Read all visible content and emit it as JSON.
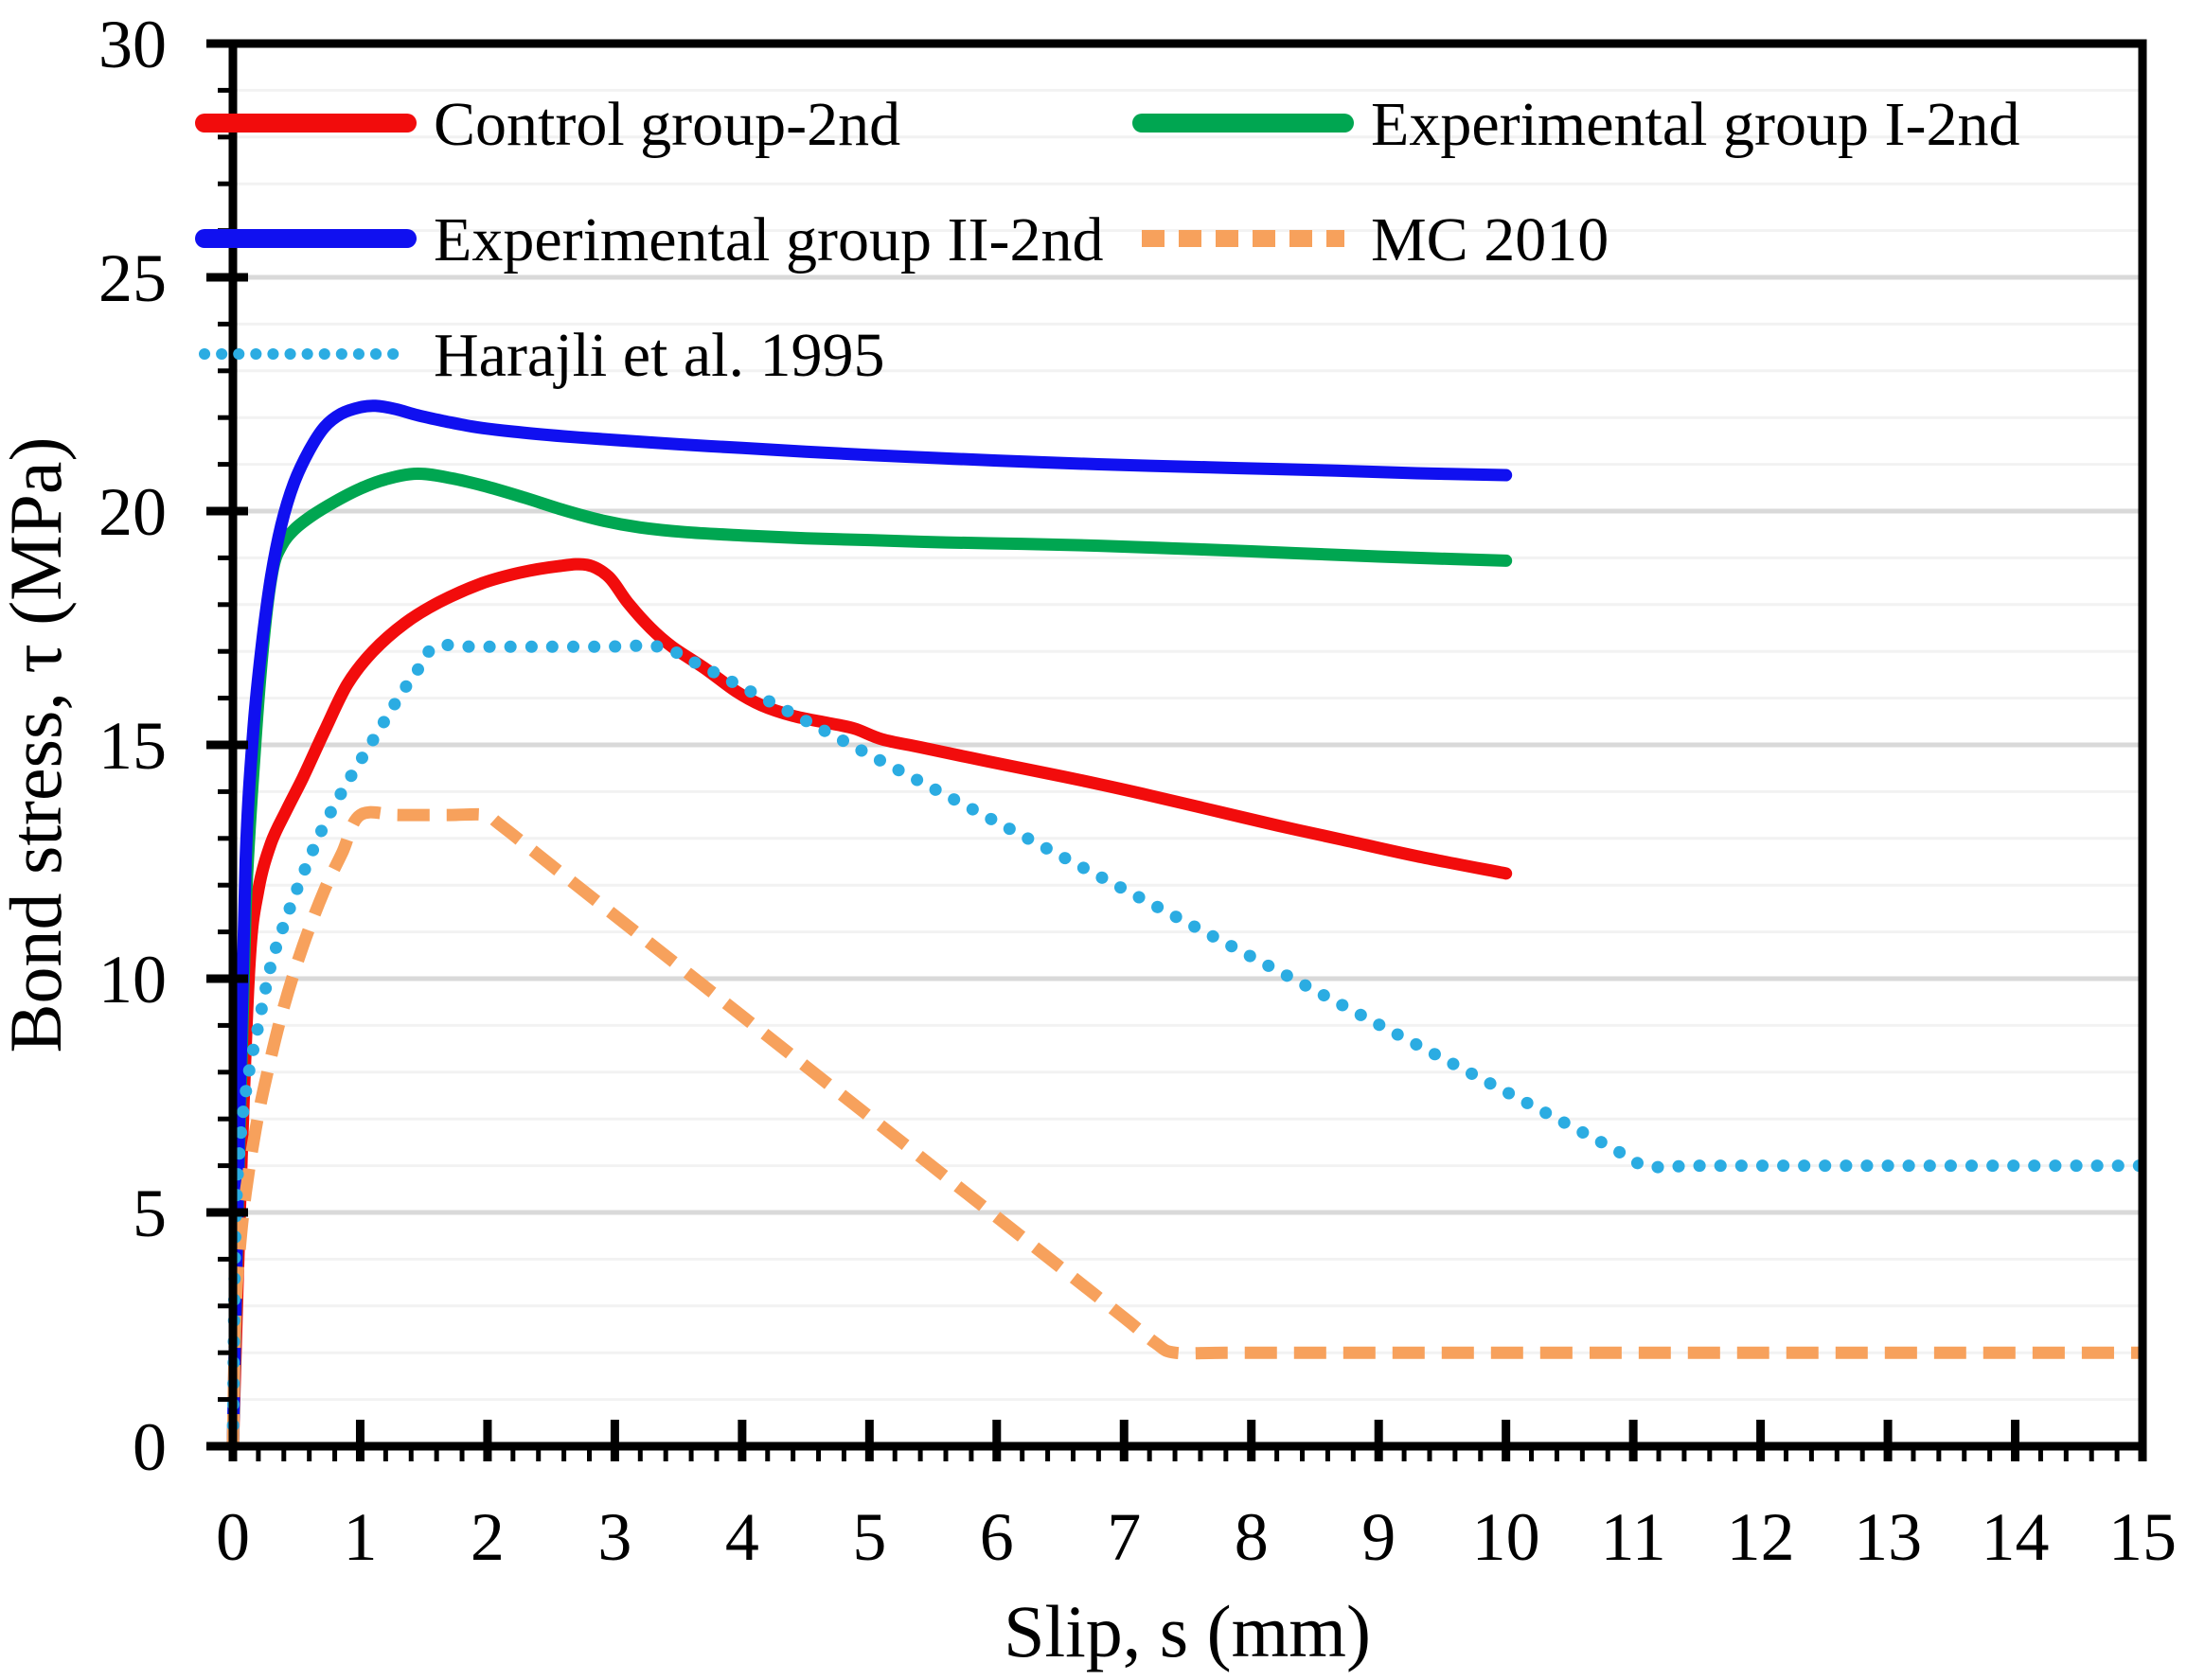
{
  "chart_data": {
    "type": "line",
    "title": "",
    "xlabel": "Slip, s (mm)",
    "ylabel": "Bond stress, τ (MPa)",
    "xlim": [
      0,
      15
    ],
    "ylim": [
      0,
      30
    ],
    "x_major_ticks": [
      0,
      1,
      2,
      3,
      4,
      5,
      6,
      7,
      8,
      9,
      10,
      11,
      12,
      13,
      14,
      15
    ],
    "x_minor_step": 0.2,
    "y_major_ticks": [
      0,
      5,
      10,
      15,
      20,
      25,
      30
    ],
    "y_minor_step": 1,
    "grid": {
      "horizontal": true,
      "vertical": false,
      "minor_color": "#f2f2f2",
      "major_color": "#d9d9d9",
      "major_every": 5
    },
    "axis_color": "#000000",
    "background": "#ffffff",
    "legend_position": "top-left-two-columns",
    "series": [
      {
        "name": "Control group-2nd",
        "color": "#f20c0c",
        "style": "solid",
        "points": [
          [
            0,
            0
          ],
          [
            0.06,
            5.5
          ],
          [
            0.13,
            10.3
          ],
          [
            0.2,
            11.9
          ],
          [
            0.3,
            12.9
          ],
          [
            0.42,
            13.6
          ],
          [
            0.55,
            14.3
          ],
          [
            0.72,
            15.3
          ],
          [
            0.9,
            16.3
          ],
          [
            1.1,
            17.0
          ],
          [
            1.35,
            17.6
          ],
          [
            1.62,
            18.05
          ],
          [
            1.95,
            18.45
          ],
          [
            2.25,
            18.68
          ],
          [
            2.55,
            18.82
          ],
          [
            2.78,
            18.85
          ],
          [
            2.95,
            18.6
          ],
          [
            3.1,
            18.05
          ],
          [
            3.28,
            17.5
          ],
          [
            3.45,
            17.1
          ],
          [
            3.7,
            16.65
          ],
          [
            3.95,
            16.15
          ],
          [
            4.15,
            15.85
          ],
          [
            4.4,
            15.62
          ],
          [
            4.65,
            15.48
          ],
          [
            4.88,
            15.35
          ],
          [
            5.1,
            15.12
          ],
          [
            5.4,
            14.95
          ],
          [
            5.8,
            14.72
          ],
          [
            6.2,
            14.5
          ],
          [
            6.7,
            14.22
          ],
          [
            7.2,
            13.92
          ],
          [
            7.7,
            13.6
          ],
          [
            8.2,
            13.28
          ],
          [
            8.7,
            12.98
          ],
          [
            9.3,
            12.62
          ],
          [
            10,
            12.25
          ]
        ]
      },
      {
        "name": "Experimental group I-2nd",
        "color": "#00a651",
        "style": "solid",
        "points": [
          [
            0,
            0
          ],
          [
            0.05,
            6.5
          ],
          [
            0.1,
            11.5
          ],
          [
            0.17,
            14.8
          ],
          [
            0.24,
            17.2
          ],
          [
            0.31,
            18.7
          ],
          [
            0.38,
            19.25
          ],
          [
            0.48,
            19.6
          ],
          [
            0.62,
            19.9
          ],
          [
            0.8,
            20.2
          ],
          [
            1.0,
            20.48
          ],
          [
            1.2,
            20.68
          ],
          [
            1.45,
            20.8
          ],
          [
            1.72,
            20.7
          ],
          [
            2.0,
            20.52
          ],
          [
            2.3,
            20.28
          ],
          [
            2.6,
            20.02
          ],
          [
            2.9,
            19.8
          ],
          [
            3.2,
            19.65
          ],
          [
            3.55,
            19.55
          ],
          [
            4.0,
            19.48
          ],
          [
            4.5,
            19.42
          ],
          [
            5.0,
            19.38
          ],
          [
            5.6,
            19.33
          ],
          [
            6.2,
            19.3
          ],
          [
            6.8,
            19.26
          ],
          [
            7.4,
            19.2
          ],
          [
            8.0,
            19.14
          ],
          [
            8.7,
            19.06
          ],
          [
            9.3,
            19.0
          ],
          [
            10,
            18.94
          ]
        ]
      },
      {
        "name": "Experimental group II-2nd",
        "color": "#1010f0",
        "style": "solid",
        "points": [
          [
            0,
            0
          ],
          [
            0.05,
            7.0
          ],
          [
            0.1,
            12.5
          ],
          [
            0.16,
            15.3
          ],
          [
            0.23,
            17.2
          ],
          [
            0.3,
            18.6
          ],
          [
            0.38,
            19.7
          ],
          [
            0.48,
            20.6
          ],
          [
            0.6,
            21.3
          ],
          [
            0.72,
            21.8
          ],
          [
            0.85,
            22.08
          ],
          [
            1.0,
            22.22
          ],
          [
            1.12,
            22.25
          ],
          [
            1.28,
            22.18
          ],
          [
            1.45,
            22.05
          ],
          [
            1.65,
            21.93
          ],
          [
            1.9,
            21.8
          ],
          [
            2.2,
            21.7
          ],
          [
            2.6,
            21.6
          ],
          [
            3.0,
            21.52
          ],
          [
            3.5,
            21.43
          ],
          [
            4.0,
            21.35
          ],
          [
            4.5,
            21.27
          ],
          [
            5.0,
            21.2
          ],
          [
            5.5,
            21.14
          ],
          [
            6.0,
            21.08
          ],
          [
            6.6,
            21.02
          ],
          [
            7.2,
            20.97
          ],
          [
            7.9,
            20.92
          ],
          [
            8.6,
            20.87
          ],
          [
            9.3,
            20.81
          ],
          [
            10,
            20.77
          ]
        ]
      },
      {
        "name": "MC 2010",
        "color": "#f7a15c",
        "style": "dashed",
        "points": [
          [
            0,
            0
          ],
          [
            0.02,
            2.8
          ],
          [
            0.05,
            4.1
          ],
          [
            0.1,
            5.4
          ],
          [
            0.18,
            6.8
          ],
          [
            0.28,
            8.1
          ],
          [
            0.4,
            9.4
          ],
          [
            0.55,
            10.7
          ],
          [
            0.72,
            11.9
          ],
          [
            0.86,
            12.7
          ],
          [
            1.0,
            13.5
          ],
          [
            1.3,
            13.5
          ],
          [
            1.7,
            13.5
          ],
          [
            1.98,
            13.5
          ],
          [
            2.1,
            13.29
          ],
          [
            2.6,
            12.21
          ],
          [
            3.2,
            10.92
          ],
          [
            4.0,
            9.2
          ],
          [
            4.8,
            7.48
          ],
          [
            5.6,
            5.76
          ],
          [
            6.4,
            4.04
          ],
          [
            7.0,
            2.75
          ],
          [
            7.25,
            2.2
          ],
          [
            7.4,
            2.0
          ],
          [
            7.8,
            2.0
          ],
          [
            8.6,
            2.0
          ],
          [
            9.6,
            2.0
          ],
          [
            10.8,
            2.0
          ],
          [
            12.0,
            2.0
          ],
          [
            13.5,
            2.0
          ],
          [
            15,
            2.0
          ]
        ]
      },
      {
        "name": "Harajli et al. 1995",
        "color": "#2bace2",
        "style": "dotted",
        "points": [
          [
            0,
            0
          ],
          [
            0.02,
            4.6
          ],
          [
            0.06,
            6.6
          ],
          [
            0.12,
            7.9
          ],
          [
            0.2,
            9.0
          ],
          [
            0.3,
            10.3
          ],
          [
            0.42,
            11.3
          ],
          [
            0.56,
            12.3
          ],
          [
            0.72,
            13.3
          ],
          [
            0.9,
            14.2
          ],
          [
            1.1,
            15.1
          ],
          [
            1.3,
            16.0
          ],
          [
            1.45,
            16.6
          ],
          [
            1.59,
            17.1
          ],
          [
            1.9,
            17.1
          ],
          [
            2.4,
            17.1
          ],
          [
            2.9,
            17.1
          ],
          [
            3.35,
            17.1
          ],
          [
            3.6,
            16.8
          ],
          [
            4.2,
            15.95
          ],
          [
            5.0,
            14.79
          ],
          [
            6.0,
            13.35
          ],
          [
            7.0,
            11.91
          ],
          [
            8.0,
            10.47
          ],
          [
            9.0,
            9.02
          ],
          [
            10.0,
            7.58
          ],
          [
            10.8,
            6.43
          ],
          [
            11.1,
            6.0
          ],
          [
            11.5,
            6.0
          ],
          [
            12.2,
            6.0
          ],
          [
            13.0,
            6.0
          ],
          [
            14.0,
            6.0
          ],
          [
            15,
            6.0
          ]
        ]
      }
    ],
    "legend": {
      "items": [
        {
          "series_index": 0,
          "row": 0,
          "col": 0
        },
        {
          "series_index": 1,
          "row": 0,
          "col": 1
        },
        {
          "series_index": 2,
          "row": 1,
          "col": 0
        },
        {
          "series_index": 3,
          "row": 1,
          "col": 1
        },
        {
          "series_index": 4,
          "row": 2,
          "col": 0
        }
      ]
    }
  }
}
